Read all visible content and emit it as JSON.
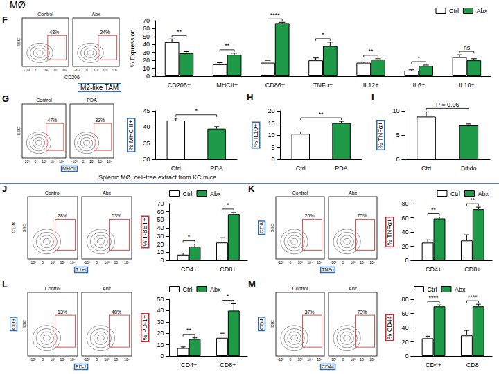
{
  "annotations": {
    "cell_label": "MØ",
    "tam_label": "M2-like TAM",
    "caption": "Splenic MØ, cell-free extract from KC mice"
  },
  "flow_plots": [
    {
      "panel": "F",
      "x_label": "CD206",
      "y_label": "SSC",
      "x_ticks": [
        "-10³",
        "0",
        "10³",
        "10⁴",
        "10⁵"
      ],
      "plots": [
        {
          "title": "Control",
          "gate_label": "48%"
        },
        {
          "title": "Abx",
          "gate_label": "24%"
        }
      ]
    },
    {
      "panel": "G",
      "x_label": "MHCII",
      "y_label": "SSC",
      "x_ticks": [
        "-10³",
        "0",
        "10³",
        "10⁴",
        "10⁵"
      ],
      "plots": [
        {
          "title": "Control",
          "gate_label": "47%"
        },
        {
          "title": "PDA",
          "gate_label": "33%"
        }
      ]
    },
    {
      "panel": "J",
      "outer_label": "CD8",
      "x_label": "T bet",
      "y_label": "SSC",
      "x_ticks": [
        "-10³",
        "0",
        "10³",
        "10⁴",
        "10⁵"
      ],
      "plots": [
        {
          "title": "Control",
          "gate_label": "28%"
        },
        {
          "title": "Abx",
          "gate_label": "63%"
        }
      ]
    },
    {
      "panel": "K",
      "outer_label": "CD8",
      "x_label": "TNFα",
      "y_label": "SSC",
      "x_ticks": [
        "-10³",
        "0",
        "10³",
        "10⁴",
        "10⁵"
      ],
      "plots": [
        {
          "title": "Control",
          "gate_label": "26%"
        },
        {
          "title": "Abx",
          "gate_label": "75%"
        }
      ]
    },
    {
      "panel": "L",
      "outer_label": "CD8",
      "x_label": "PD-1",
      "y_label": "SSC",
      "x_ticks": [
        "-10³",
        "0",
        "10³",
        "10⁴",
        "10⁵"
      ],
      "plots": [
        {
          "title": "Control",
          "gate_label": "13%"
        },
        {
          "title": "Abx",
          "gate_label": "48%"
        }
      ]
    },
    {
      "panel": "M",
      "outer_label": "CD4",
      "x_label": "CD44",
      "y_label": "SSC",
      "x_ticks": [
        "-10³",
        "0",
        "10³",
        "10⁴",
        "10⁵"
      ],
      "plots": [
        {
          "title": "Control",
          "gate_label": "37%"
        },
        {
          "title": "Abx",
          "gate_label": "73%"
        }
      ]
    }
  ],
  "chart_data": [
    {
      "panel": "F",
      "type": "bar",
      "y_label": "% Expression",
      "categories": [
        "CD206+",
        "MHCII+",
        "CD86+",
        "TNFα+",
        "IL12+",
        "IL6+",
        "IL10+"
      ],
      "series": [
        {
          "name": "Ctrl",
          "color": "#ffffff",
          "values": [
            43,
            15,
            17,
            20,
            17,
            7,
            24
          ],
          "errors": [
            4,
            2,
            3,
            3,
            1,
            1,
            3
          ]
        },
        {
          "name": "Abx",
          "color": "#1f9a49",
          "values": [
            29,
            27,
            67,
            38,
            21,
            13,
            20
          ],
          "errors": [
            2,
            2,
            1,
            5,
            1,
            1,
            2
          ]
        }
      ],
      "significance": [
        "**",
        "**",
        "****",
        "*",
        "**",
        "*",
        "ns"
      ],
      "ylim": [
        0,
        70
      ],
      "yticks": [
        0,
        10,
        20,
        30,
        40,
        50,
        60,
        70
      ],
      "grid": false,
      "legend": "top right"
    },
    {
      "panel": "G",
      "type": "bar",
      "y_label": "% MHC II+",
      "categories": [
        "Ctrl",
        "PDA"
      ],
      "values": [
        42,
        39.5
      ],
      "errors": [
        0.7,
        0.6
      ],
      "colors": [
        "#ffffff",
        "#1f9a49"
      ],
      "significance": "*",
      "ylim": [
        30,
        45
      ],
      "yticks": [
        30,
        35,
        40,
        45
      ],
      "grid": false
    },
    {
      "panel": "H",
      "type": "bar",
      "y_label": "% IL10+",
      "categories": [
        "Ctrl",
        "PDA"
      ],
      "values": [
        10.5,
        15
      ],
      "errors": [
        0.8,
        0.7
      ],
      "colors": [
        "#ffffff",
        "#1f9a49"
      ],
      "significance": "**",
      "ylim": [
        0,
        20
      ],
      "yticks": [
        0,
        5,
        10,
        15,
        20
      ],
      "grid": false
    },
    {
      "panel": "I",
      "type": "bar",
      "y_label": "% TNFα+",
      "categories": [
        "Ctrl",
        "Bifido"
      ],
      "values": [
        8.8,
        7
      ],
      "errors": [
        1,
        0.3
      ],
      "colors": [
        "#ffffff",
        "#1f9a49"
      ],
      "significance": "P = 0.06",
      "ylim": [
        0,
        10
      ],
      "yticks": [
        0,
        5,
        10
      ],
      "grid": false
    },
    {
      "panel": "J",
      "type": "bar",
      "y_label": "% T-BET+",
      "categories": [
        "CD4+",
        "CD8+"
      ],
      "series": [
        {
          "name": "Ctrl",
          "color": "#ffffff",
          "values": [
            7,
            22
          ],
          "errors": [
            2,
            6
          ]
        },
        {
          "name": "Abx",
          "color": "#1f9a49",
          "values": [
            17,
            57
          ],
          "errors": [
            3,
            2
          ]
        }
      ],
      "significance": [
        "*",
        "*"
      ],
      "ylim": [
        0,
        70
      ],
      "yticks": [
        0,
        10,
        20,
        30,
        40,
        50,
        60,
        70
      ],
      "grid": false,
      "legend": "top left"
    },
    {
      "panel": "K",
      "type": "bar",
      "y_label": "% TNFα+",
      "categories": [
        "CD4+",
        "CD8+"
      ],
      "series": [
        {
          "name": "Ctrl",
          "color": "#ffffff",
          "values": [
            25,
            28
          ],
          "errors": [
            4,
            8
          ]
        },
        {
          "name": "Abx",
          "color": "#1f9a49",
          "values": [
            59,
            72
          ],
          "errors": [
            2,
            3
          ]
        }
      ],
      "significance": [
        "**",
        "**"
      ],
      "ylim": [
        0,
        80
      ],
      "yticks": [
        0,
        20,
        40,
        60,
        80
      ],
      "grid": false,
      "legend": "top right"
    },
    {
      "panel": "L",
      "type": "bar",
      "y_label": "% PD-1+",
      "categories": [
        "CD4+",
        "CD8+"
      ],
      "series": [
        {
          "name": "Ctrl",
          "color": "#ffffff",
          "values": [
            7,
            16
          ],
          "errors": [
            1,
            4
          ]
        },
        {
          "name": "Abx",
          "color": "#1f9a49",
          "values": [
            15,
            40
          ],
          "errors": [
            1,
            6
          ]
        }
      ],
      "significance": [
        "**",
        "*"
      ],
      "ylim": [
        0,
        50
      ],
      "yticks": [
        0,
        10,
        20,
        30,
        40,
        50
      ],
      "grid": false,
      "legend": "top left"
    },
    {
      "panel": "M",
      "type": "bar",
      "y_label": "% CD44",
      "categories": [
        "CD4+",
        "CD8"
      ],
      "series": [
        {
          "name": "Ctrl",
          "color": "#ffffff",
          "values": [
            25,
            29
          ],
          "errors": [
            3,
            7
          ]
        },
        {
          "name": "Abx",
          "color": "#1f9a49",
          "values": [
            70,
            70
          ],
          "errors": [
            2,
            3
          ]
        }
      ],
      "significance": [
        "****",
        "****"
      ],
      "ylim": [
        0,
        80
      ],
      "yticks": [
        0,
        20,
        40,
        60,
        80
      ],
      "grid": false,
      "legend": "top left"
    }
  ]
}
